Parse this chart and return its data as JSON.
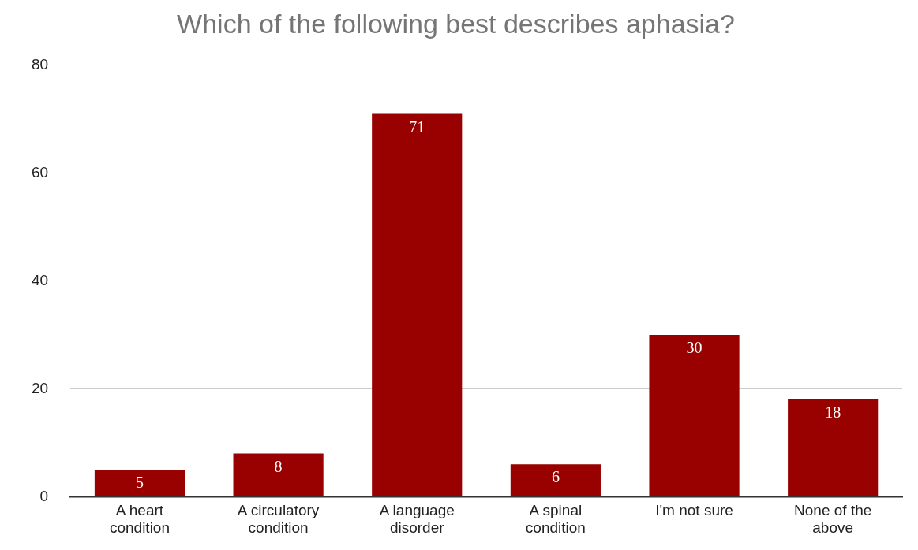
{
  "chart_data": {
    "type": "bar",
    "title": "Which of the following best describes aphasia?",
    "categories": [
      "A heart condition",
      "A circulatory condition",
      "A language disorder",
      "A spinal condition",
      "I'm not sure",
      "None of the above"
    ],
    "values": [
      5,
      8,
      71,
      6,
      30,
      18
    ],
    "color": "#990000",
    "ylim": [
      0,
      80
    ],
    "yticks": [
      0,
      20,
      40,
      60,
      80
    ],
    "grid": "y",
    "data_labels": true
  }
}
